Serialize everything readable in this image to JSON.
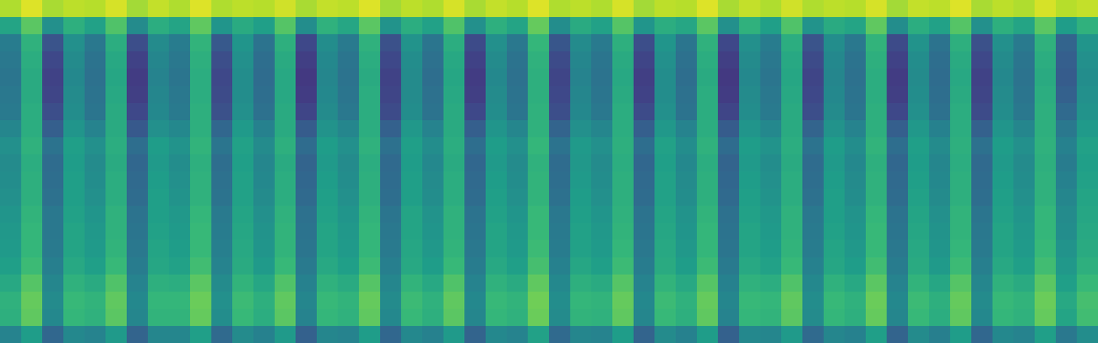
{
  "chart_data": {
    "type": "heatmap",
    "color": "viridis",
    "tick_labels": false,
    "zlim": [
      0,
      100
    ],
    "cells": [
      [
        88,
        95,
        87,
        90,
        89,
        94,
        86,
        91,
        88,
        95,
        88,
        90,
        89,
        93,
        87,
        91,
        90,
        95,
        86,
        90,
        88,
        94,
        87,
        91,
        89,
        95,
        88,
        90,
        88,
        94,
        86,
        90,
        89,
        95,
        87,
        91,
        88,
        93,
        88,
        90,
        89,
        94,
        86,
        91,
        90,
        95,
        87,
        90,
        88,
        94,
        89,
        91
      ],
      [
        58,
        74,
        50,
        63,
        57,
        72,
        48,
        62,
        58,
        75,
        52,
        61,
        56,
        73,
        49,
        64,
        59,
        74,
        51,
        62,
        57,
        72,
        50,
        63,
        58,
        76,
        49,
        61,
        57,
        73,
        52,
        62,
        59,
        74,
        50,
        64,
        56,
        72,
        51,
        61,
        58,
        75,
        49,
        62,
        57,
        73,
        50,
        63,
        58,
        74,
        55,
        64
      ],
      [
        42,
        64,
        26,
        50,
        40,
        62,
        24,
        48,
        42,
        65,
        28,
        52,
        38,
        63,
        22,
        49,
        41,
        64,
        25,
        51,
        39,
        62,
        23,
        50,
        40,
        66,
        27,
        48,
        41,
        63,
        24,
        52,
        39,
        64,
        22,
        50,
        42,
        62,
        26,
        49,
        40,
        65,
        23,
        51,
        38,
        63,
        25,
        50,
        41,
        64,
        32,
        52
      ],
      [
        40,
        62,
        22,
        48,
        38,
        60,
        20,
        46,
        40,
        63,
        24,
        50,
        36,
        61,
        19,
        47,
        39,
        62,
        22,
        49,
        37,
        60,
        20,
        48,
        38,
        64,
        23,
        46,
        39,
        61,
        21,
        50,
        37,
        62,
        19,
        48,
        40,
        60,
        23,
        47,
        38,
        63,
        20,
        49,
        36,
        61,
        22,
        48,
        39,
        62,
        30,
        50
      ],
      [
        39,
        61,
        20,
        47,
        37,
        59,
        18,
        45,
        39,
        62,
        22,
        49,
        35,
        60,
        17,
        46,
        38,
        61,
        20,
        48,
        36,
        59,
        18,
        47,
        37,
        63,
        21,
        45,
        38,
        60,
        19,
        49,
        36,
        61,
        17,
        47,
        39,
        59,
        21,
        46,
        37,
        62,
        18,
        48,
        35,
        60,
        20,
        47,
        38,
        61,
        29,
        49
      ],
      [
        40,
        61,
        21,
        48,
        38,
        60,
        19,
        46,
        40,
        62,
        23,
        49,
        36,
        60,
        18,
        47,
        39,
        62,
        21,
        48,
        37,
        60,
        19,
        48,
        38,
        63,
        22,
        46,
        39,
        61,
        20,
        49,
        37,
        62,
        18,
        48,
        40,
        60,
        22,
        47,
        38,
        62,
        19,
        49,
        36,
        61,
        21,
        48,
        39,
        62,
        31,
        50
      ],
      [
        41,
        62,
        24,
        49,
        39,
        61,
        22,
        47,
        41,
        63,
        25,
        50,
        37,
        61,
        21,
        48,
        40,
        62,
        23,
        49,
        38,
        61,
        22,
        49,
        39,
        64,
        24,
        47,
        40,
        62,
        23,
        50,
        38,
        62,
        21,
        49,
        41,
        61,
        24,
        48,
        39,
        63,
        22,
        50,
        37,
        62,
        23,
        49,
        40,
        63,
        34,
        51
      ],
      [
        46,
        62,
        30,
        52,
        45,
        61,
        28,
        50,
        47,
        63,
        33,
        54,
        44,
        61,
        29,
        51,
        46,
        62,
        31,
        53,
        45,
        61,
        30,
        52,
        46,
        64,
        32,
        50,
        46,
        62,
        30,
        53,
        45,
        62,
        29,
        52,
        47,
        61,
        32,
        51,
        45,
        63,
        30,
        53,
        44,
        62,
        31,
        52,
        46,
        63,
        40,
        54
      ],
      [
        50,
        64,
        38,
        56,
        50,
        62,
        36,
        55,
        51,
        65,
        39,
        57,
        48,
        63,
        35,
        55,
        50,
        64,
        37,
        56,
        49,
        62,
        36,
        55,
        50,
        66,
        38,
        54,
        50,
        63,
        36,
        57,
        49,
        64,
        35,
        55,
        51,
        62,
        38,
        55,
        49,
        65,
        36,
        56,
        48,
        63,
        37,
        55,
        50,
        64,
        44,
        57
      ],
      [
        48,
        62,
        35,
        55,
        48,
        61,
        33,
        54,
        49,
        63,
        36,
        56,
        46,
        61,
        32,
        54,
        48,
        62,
        34,
        55,
        47,
        61,
        33,
        54,
        48,
        64,
        35,
        53,
        48,
        62,
        33,
        56,
        47,
        62,
        32,
        54,
        49,
        61,
        35,
        54,
        47,
        63,
        33,
        55,
        46,
        62,
        34,
        54,
        48,
        63,
        42,
        56
      ],
      [
        49,
        63,
        36,
        56,
        49,
        62,
        34,
        55,
        50,
        64,
        37,
        57,
        47,
        62,
        33,
        55,
        49,
        63,
        35,
        56,
        48,
        62,
        34,
        55,
        49,
        65,
        36,
        54,
        49,
        63,
        34,
        57,
        48,
        63,
        33,
        55,
        50,
        62,
        36,
        55,
        48,
        64,
        34,
        56,
        47,
        63,
        35,
        55,
        49,
        64,
        44,
        57
      ],
      [
        50,
        63,
        37,
        56,
        50,
        62,
        35,
        56,
        51,
        64,
        38,
        57,
        48,
        62,
        34,
        56,
        50,
        63,
        36,
        56,
        49,
        62,
        35,
        56,
        50,
        65,
        37,
        55,
        50,
        63,
        35,
        57,
        49,
        63,
        34,
        56,
        51,
        62,
        37,
        56,
        49,
        64,
        35,
        57,
        48,
        63,
        36,
        56,
        50,
        64,
        46,
        58
      ],
      [
        52,
        65,
        40,
        57,
        52,
        64,
        38,
        56,
        53,
        66,
        41,
        58,
        50,
        64,
        37,
        57,
        52,
        65,
        39,
        58,
        51,
        64,
        38,
        57,
        52,
        67,
        40,
        56,
        52,
        64,
        38,
        58,
        51,
        65,
        37,
        57,
        53,
        64,
        40,
        56,
        51,
        66,
        38,
        58,
        50,
        65,
        39,
        57,
        52,
        66,
        48,
        59
      ],
      [
        53,
        66,
        40,
        58,
        53,
        64,
        39,
        57,
        54,
        67,
        42,
        59,
        51,
        65,
        38,
        58,
        53,
        66,
        40,
        58,
        52,
        64,
        39,
        58,
        53,
        67,
        41,
        57,
        53,
        65,
        39,
        59,
        52,
        66,
        38,
        58,
        54,
        64,
        41,
        57,
        52,
        67,
        39,
        59,
        51,
        65,
        40,
        58,
        53,
        66,
        49,
        60
      ],
      [
        54,
        66,
        41,
        58,
        54,
        65,
        40,
        58,
        55,
        67,
        43,
        60,
        52,
        65,
        39,
        58,
        54,
        66,
        41,
        59,
        53,
        65,
        40,
        58,
        54,
        68,
        42,
        57,
        54,
        66,
        40,
        60,
        53,
        66,
        39,
        58,
        55,
        65,
        42,
        58,
        53,
        67,
        40,
        60,
        52,
        66,
        41,
        58,
        54,
        67,
        51,
        61
      ],
      [
        56,
        68,
        43,
        60,
        56,
        67,
        42,
        59,
        57,
        69,
        45,
        61,
        54,
        67,
        41,
        60,
        56,
        68,
        43,
        60,
        55,
        67,
        42,
        60,
        56,
        70,
        44,
        59,
        56,
        68,
        42,
        61,
        55,
        68,
        41,
        60,
        57,
        67,
        44,
        59,
        55,
        69,
        42,
        61,
        54,
        68,
        43,
        60,
        56,
        69,
        53,
        63
      ],
      [
        60,
        73,
        46,
        64,
        61,
        72,
        45,
        63,
        62,
        74,
        48,
        65,
        59,
        72,
        44,
        64,
        61,
        73,
        46,
        65,
        60,
        72,
        45,
        64,
        61,
        75,
        47,
        63,
        61,
        73,
        45,
        65,
        60,
        73,
        44,
        64,
        62,
        72,
        47,
        64,
        60,
        74,
        45,
        65,
        59,
        73,
        46,
        64,
        61,
        74,
        56,
        67
      ],
      [
        64,
        76,
        48,
        67,
        65,
        75,
        47,
        66,
        66,
        77,
        50,
        68,
        63,
        75,
        46,
        67,
        65,
        76,
        48,
        68,
        64,
        75,
        47,
        67,
        65,
        78,
        49,
        66,
        65,
        76,
        47,
        68,
        64,
        76,
        46,
        67,
        66,
        75,
        49,
        67,
        64,
        77,
        47,
        68,
        63,
        76,
        48,
        67,
        65,
        77,
        60,
        70
      ],
      [
        63,
        75,
        47,
        66,
        64,
        74,
        46,
        65,
        65,
        76,
        49,
        67,
        62,
        74,
        45,
        66,
        64,
        75,
        47,
        67,
        63,
        74,
        46,
        66,
        64,
        77,
        48,
        65,
        64,
        75,
        46,
        67,
        63,
        75,
        45,
        66,
        65,
        74,
        48,
        66,
        63,
        76,
        46,
        67,
        62,
        75,
        47,
        66,
        64,
        76,
        58,
        69
      ],
      [
        45,
        55,
        33,
        47,
        45,
        54,
        32,
        46,
        46,
        56,
        34,
        48,
        44,
        54,
        31,
        46,
        45,
        55,
        33,
        47,
        44,
        54,
        32,
        47,
        45,
        57,
        34,
        46,
        45,
        55,
        32,
        48,
        44,
        55,
        31,
        47,
        46,
        54,
        34,
        46,
        44,
        56,
        32,
        48,
        43,
        55,
        33,
        47,
        45,
        56,
        40,
        49
      ]
    ]
  }
}
